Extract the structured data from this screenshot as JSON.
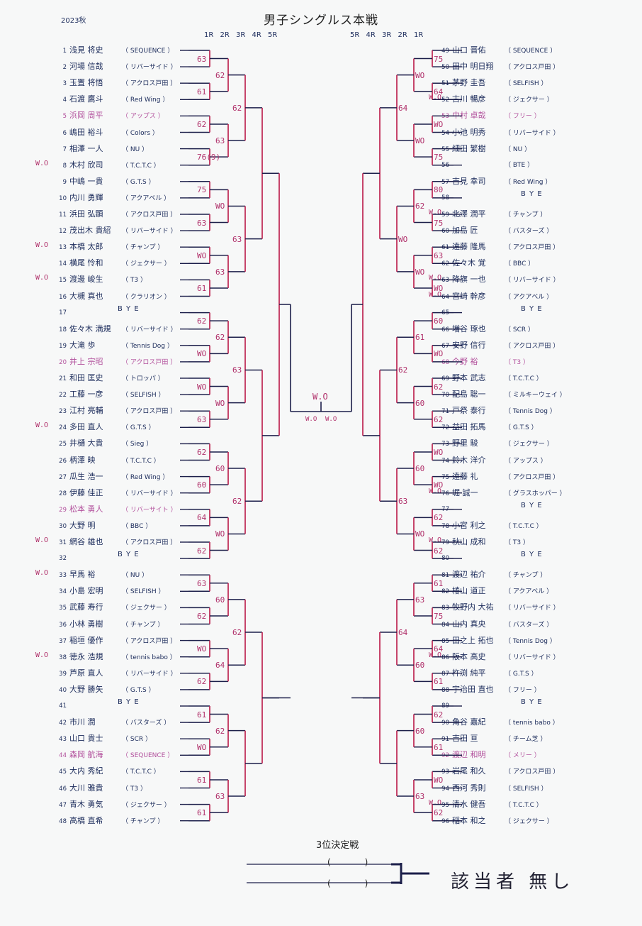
{
  "season": "2023秋",
  "title": "男子シングルス本戦",
  "rounds_left": "1R 2R 3R 4R 5R",
  "rounds_right": "5R 4R 3R 2R 1R",
  "bye_text": "B Y E",
  "left": [
    {
      "no": "1",
      "name": "浅見 将史",
      "club": "SEQUENCE"
    },
    {
      "no": "2",
      "name": "河場 信哉",
      "club": "リバーサイド"
    },
    {
      "no": "3",
      "name": "玉置 将悟",
      "club": "アクロス戸田"
    },
    {
      "no": "4",
      "name": "石渡 鷹斗",
      "club": "Red Wing"
    },
    {
      "no": "5",
      "name": "浜岡 周平",
      "club": "アップス",
      "pink": true
    },
    {
      "no": "6",
      "name": "嶋田 裕斗",
      "club": "Colors"
    },
    {
      "no": "7",
      "name": "相澤 一人",
      "club": "NU"
    },
    {
      "no": "8",
      "name": "木村 欣司",
      "club": "T.C.T.C",
      "wo": "W.O"
    },
    {
      "no": "9",
      "name": "中嶋 一貴",
      "club": "G.T.S"
    },
    {
      "no": "10",
      "name": "内川 勇輝",
      "club": "アクアベル"
    },
    {
      "no": "11",
      "name": "浜田 弘顕",
      "club": "アクロス戸田"
    },
    {
      "no": "12",
      "name": "茂出木 貴紹",
      "club": "リバーサイド"
    },
    {
      "no": "13",
      "name": "本橋 太郎",
      "club": "チャンプ",
      "wo": "W.O"
    },
    {
      "no": "14",
      "name": "横尾 怜和",
      "club": "ジェクサー"
    },
    {
      "no": "15",
      "name": "渡邊 峻生",
      "club": "T3",
      "wo": "W.O"
    },
    {
      "no": "16",
      "name": "大槻 真也",
      "club": "クラリオン"
    },
    {
      "no": "17",
      "bye": true
    },
    {
      "no": "18",
      "name": "佐々木 満規",
      "club": "リバーサイド"
    },
    {
      "no": "19",
      "name": "大滝 歩",
      "club": "Tennis Dog"
    },
    {
      "no": "20",
      "name": "井上 宗昭",
      "club": "アクロス戸田",
      "pink": true
    },
    {
      "no": "21",
      "name": "和田 匡史",
      "club": "トロッパ"
    },
    {
      "no": "22",
      "name": "工藤 一彦",
      "club": "SELFISH"
    },
    {
      "no": "23",
      "name": "江村 亮輔",
      "club": "アクロス戸田"
    },
    {
      "no": "24",
      "name": "多田 直人",
      "club": "G.T.S",
      "wo": "W.O"
    },
    {
      "no": "25",
      "name": "井樋 大貴",
      "club": "Sieg"
    },
    {
      "no": "26",
      "name": "柄澤 映",
      "club": "T.C.T.C"
    },
    {
      "no": "27",
      "name": "瓜生 浩一",
      "club": "Red Wing"
    },
    {
      "no": "28",
      "name": "伊藤 佳正",
      "club": "リバーサイド"
    },
    {
      "no": "29",
      "name": "松本 勇人",
      "club": "リバーサイト",
      "pink": true
    },
    {
      "no": "30",
      "name": "大野 明",
      "club": "BBC"
    },
    {
      "no": "31",
      "name": "網谷 雄也",
      "club": "アクロス戸田",
      "wo": "W.O"
    },
    {
      "no": "32",
      "bye": true
    },
    {
      "no": "33",
      "name": "早馬 裕",
      "club": "NU",
      "wo": "W.O"
    },
    {
      "no": "34",
      "name": "小島 宏明",
      "club": "SELFISH"
    },
    {
      "no": "35",
      "name": "武藤 寿行",
      "club": "ジェクサー"
    },
    {
      "no": "36",
      "name": "小林 勇樹",
      "club": "チャンプ"
    },
    {
      "no": "37",
      "name": "稲垣 優作",
      "club": "アクロス戸田"
    },
    {
      "no": "38",
      "name": "徳永 浩規",
      "club": "tennis babo",
      "wo": "W.O"
    },
    {
      "no": "39",
      "name": "芦原 直人",
      "club": "リバーサイド"
    },
    {
      "no": "40",
      "name": "大野 勝矢",
      "club": "G.T.S"
    },
    {
      "no": "41",
      "bye": true
    },
    {
      "no": "42",
      "name": "市川 潤",
      "club": "バスターズ"
    },
    {
      "no": "43",
      "name": "山口 貴士",
      "club": "SCR"
    },
    {
      "no": "44",
      "name": "森岡 航海",
      "club": "SEQUENCE",
      "pink": true
    },
    {
      "no": "45",
      "name": "大内 秀紀",
      "club": "T.C.T.C"
    },
    {
      "no": "46",
      "name": "大川 雅貴",
      "club": "T3"
    },
    {
      "no": "47",
      "name": "青木 勇気",
      "club": "ジェクサー"
    },
    {
      "no": "48",
      "name": "高橋 直希",
      "club": "チャンプ"
    }
  ],
  "right": [
    {
      "no": "49",
      "name": "山口 晋佑",
      "club": "SEQUENCE"
    },
    {
      "no": "50",
      "name": "田中 明日翔",
      "club": "アクロス戸田"
    },
    {
      "no": "51",
      "name": "茅野 圭吾",
      "club": "SELFISH"
    },
    {
      "no": "52",
      "name": "古川 暢彦",
      "club": "ジェクサー",
      "wo": "W.O"
    },
    {
      "no": "53",
      "name": "中村 卓哉",
      "club": "フリー",
      "pink": true
    },
    {
      "no": "54",
      "name": "小池 明秀",
      "club": "リバーサイド"
    },
    {
      "no": "55",
      "name": "細田 繁樹",
      "club": "NU"
    },
    {
      "no": "56",
      "name": "",
      "club": "BTE"
    },
    {
      "no": "57",
      "name": "吉見 幸司",
      "club": "Red Wing"
    },
    {
      "no": "58",
      "bye": true
    },
    {
      "no": "59",
      "name": "北澤 潤平",
      "club": "チャンプ",
      "wo": "W.O"
    },
    {
      "no": "60",
      "name": "加島 匠",
      "club": "バスターズ"
    },
    {
      "no": "61",
      "name": "遠藤 隆馬",
      "club": "アクロス戸田"
    },
    {
      "no": "62",
      "name": "佐々木 覚",
      "club": "BBC"
    },
    {
      "no": "63",
      "name": "降旗 一也",
      "club": "リバーサイド",
      "wo": "W.O"
    },
    {
      "no": "64",
      "name": "宮崎 幹彦",
      "club": "アクアベル",
      "wo": "W.O"
    },
    {
      "no": "65",
      "bye": true
    },
    {
      "no": "66",
      "name": "増谷 琢也",
      "club": "SCR"
    },
    {
      "no": "67",
      "name": "安野 信行",
      "club": "アクロス戸田"
    },
    {
      "no": "68",
      "name": "今野 裕",
      "club": "T3",
      "pink": true
    },
    {
      "no": "69",
      "name": "野本 武志",
      "club": "T.C.T.C"
    },
    {
      "no": "70",
      "name": "配島 聡一",
      "club": "ミルキーウェイ"
    },
    {
      "no": "71",
      "name": "戸祭 泰行",
      "club": "Tennis Dog"
    },
    {
      "no": "72",
      "name": "益田 拓馬",
      "club": "G.T.S"
    },
    {
      "no": "73",
      "name": "野里 駿",
      "club": "ジェクサー"
    },
    {
      "no": "74",
      "name": "鈴木 洋介",
      "club": "アップス"
    },
    {
      "no": "75",
      "name": "遠藤 礼",
      "club": "アクロス戸田"
    },
    {
      "no": "76",
      "name": "堀 誠一",
      "club": "グラスホッパー",
      "wo": "W.O"
    },
    {
      "no": "77",
      "bye": true
    },
    {
      "no": "78",
      "name": "小宮 利之",
      "club": "T.C.T.C"
    },
    {
      "no": "79",
      "name": "秋山 成和",
      "club": "T3",
      "wo": "W.O"
    },
    {
      "no": "80",
      "bye": true
    },
    {
      "no": "81",
      "name": "渡辺 祐介",
      "club": "チャンプ"
    },
    {
      "no": "82",
      "name": "椿山 道正",
      "club": "アクアベル"
    },
    {
      "no": "83",
      "name": "牧野内 大祐",
      "club": "リバーサイド"
    },
    {
      "no": "84",
      "name": "山内 真央",
      "club": "バスターズ"
    },
    {
      "no": "85",
      "name": "田之上 拓也",
      "club": "Tennis Dog"
    },
    {
      "no": "86",
      "name": "阪本 高史",
      "club": "リバーサイド",
      "wo": "W.O"
    },
    {
      "no": "87",
      "name": "杵渕 純平",
      "club": "G.T.S"
    },
    {
      "no": "88",
      "name": "宇治田 直也",
      "club": "フリー"
    },
    {
      "no": "89",
      "bye": true
    },
    {
      "no": "90",
      "name": "角谷 嘉紀",
      "club": "tennis babo"
    },
    {
      "no": "91",
      "name": "吉田 亘",
      "club": "チーム芝"
    },
    {
      "no": "92",
      "name": "渡辺 和明",
      "club": "メリー",
      "pink": true
    },
    {
      "no": "93",
      "name": "岩尾 和久",
      "club": "アクロス戸田"
    },
    {
      "no": "94",
      "name": "西河 秀則",
      "club": "SELFISH"
    },
    {
      "no": "95",
      "name": "清水 健吾",
      "club": "T.C.T.C",
      "wo": "W.O"
    },
    {
      "no": "96",
      "name": "稲本 和之",
      "club": "ジェクサー"
    }
  ],
  "scores_left": [
    "63",
    "61",
    "62",
    "76(9)",
    "75",
    "63",
    "WO",
    "61",
    "62",
    "WO",
    "WO",
    "63",
    "62",
    "60",
    "64",
    "62",
    "63",
    "62",
    "WO",
    "62",
    "61",
    "WO",
    "61",
    "61",
    "62",
    "63",
    "WO",
    "63",
    "62",
    "WO",
    "60",
    "WO",
    "60",
    "64",
    "62",
    "63",
    "62",
    "63",
    "63",
    "62",
    "62"
  ],
  "scores_right": [
    "75",
    "64",
    "WO",
    "75",
    "80",
    "75",
    "63",
    "WO",
    "60",
    "WO",
    "62",
    "62",
    "WO",
    "WO",
    "62",
    "62",
    "61",
    "75",
    "64",
    "61",
    "62",
    "61",
    "WO",
    "62",
    "WO",
    "WO",
    "62",
    "WO",
    "61",
    "60",
    "60",
    "WO",
    "63",
    "60",
    "60",
    "63",
    "64",
    "WO",
    "62",
    "63",
    "64"
  ],
  "final_scores": {
    "top": "W.O",
    "left": "W.O",
    "right": "W.O"
  },
  "third_place_title": "3位決定戦",
  "third_place_paren": "(　　　　)",
  "third_place_note": "該当者 無し",
  "colors": {
    "ink": "#1a2a5a",
    "pink": "#b2509c",
    "red": "#c0305a",
    "line": "#1c1f4a"
  }
}
